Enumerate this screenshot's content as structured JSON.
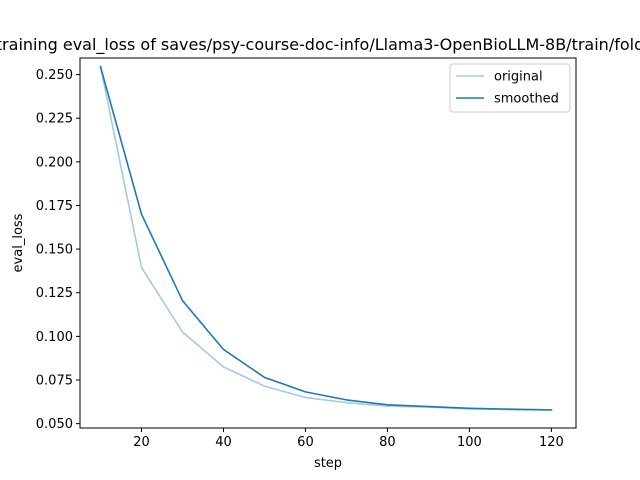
{
  "chart_data": {
    "type": "line",
    "title": "training eval_loss of saves/psy-course-doc-info/Llama3-OpenBioLLM-8B/train/fold",
    "xlabel": "step",
    "ylabel": "eval_loss",
    "xlim": [
      5,
      126
    ],
    "ylim": [
      0.0475,
      0.2595
    ],
    "xticks": [
      20,
      40,
      60,
      80,
      100,
      120
    ],
    "yticks": [
      0.05,
      0.075,
      0.1,
      0.125,
      0.15,
      0.175,
      0.2,
      0.225,
      0.25
    ],
    "ytick_labels": [
      "0.050",
      "0.075",
      "0.100",
      "0.125",
      "0.150",
      "0.175",
      "0.200",
      "0.225",
      "0.250"
    ],
    "grid": false,
    "legend_position": "top-right",
    "x": [
      10,
      20,
      30,
      40,
      50,
      60,
      70,
      80,
      90,
      100,
      110,
      120
    ],
    "series": [
      {
        "name": "original",
        "color": "#a6cae3",
        "values": [
          0.2545,
          0.1395,
          0.1025,
          0.0825,
          0.0715,
          0.065,
          0.062,
          0.06,
          0.0595,
          0.0585,
          0.058,
          0.0578
        ]
      },
      {
        "name": "smoothed",
        "color": "#1f77b4",
        "values": [
          0.2545,
          0.17,
          0.1205,
          0.0925,
          0.0765,
          0.0682,
          0.0636,
          0.0608,
          0.0598,
          0.0588,
          0.0583,
          0.0579
        ]
      }
    ]
  }
}
